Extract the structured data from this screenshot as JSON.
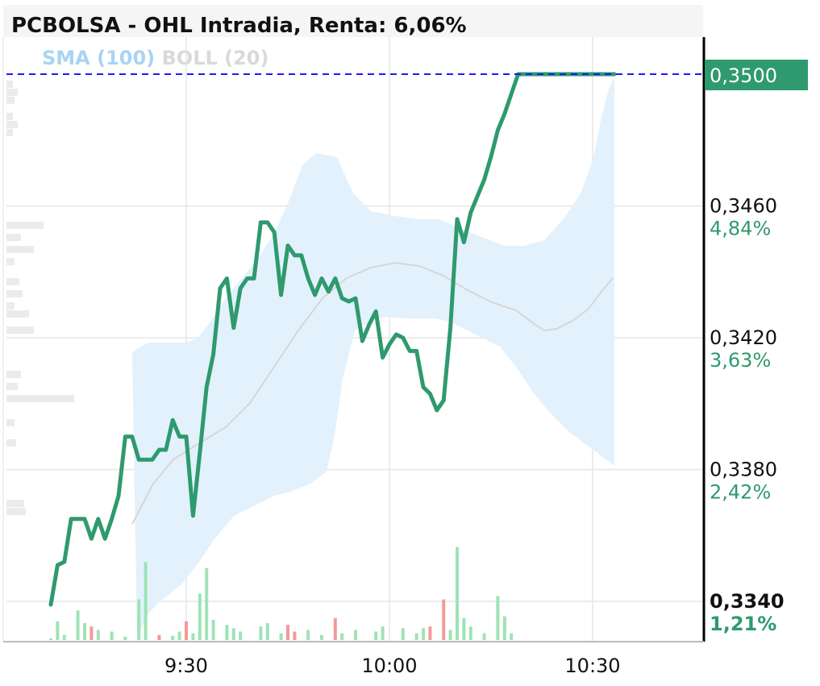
{
  "header": {
    "title": "PCBOLSA - OHL Intradia, Renta: 6,06%"
  },
  "legend": {
    "items": [
      {
        "label": "SMA (100)",
        "color": "#a8d4f5"
      },
      {
        "label": "BOLL (20)",
        "color": "#d9d9d9"
      }
    ]
  },
  "colors": {
    "price_line": "#2e9a6e",
    "band_fill": "#e3f1fc",
    "sma_line": "#d6d6d6",
    "volume_up": "#9ee3b5",
    "volume_down": "#f29a9a",
    "current_price_line": "#1a1aff",
    "current_price_tag": "#2e9a6e",
    "percent_text": "#2e9a6e",
    "grid": "#e6e6e6"
  },
  "chart_data": {
    "type": "line",
    "x_ticks": [
      "9:30",
      "10:00",
      "10:30"
    ],
    "y_ticks": [
      {
        "value": 0.334,
        "label": "0,3340",
        "pct": "1,21%"
      },
      {
        "value": 0.338,
        "label": "0,3380",
        "pct": "2,42%"
      },
      {
        "value": 0.342,
        "label": "0,3420",
        "pct": "3,63%"
      },
      {
        "value": 0.346,
        "label": "0,3460",
        "pct": "4,84%"
      }
    ],
    "ylim": [
      0.3329,
      0.3516
    ],
    "current_price": {
      "value": 0.35,
      "label": "0,3500"
    },
    "time_range": [
      "9:10",
      "10:34"
    ],
    "series": [
      {
        "type": "line",
        "points": [
          [
            "9:10",
            0.3339
          ],
          [
            "9:11",
            0.3351
          ],
          [
            "9:12",
            0.3352
          ],
          [
            "9:13",
            0.3365
          ],
          [
            "9:15",
            0.3365
          ],
          [
            "9:16",
            0.3359
          ],
          [
            "9:17",
            0.3365
          ],
          [
            "9:18",
            0.3359
          ],
          [
            "9:19",
            0.3365
          ],
          [
            "9:20",
            0.3372
          ],
          [
            "9:21",
            0.339
          ],
          [
            "9:22",
            0.339
          ],
          [
            "9:23",
            0.3383
          ],
          [
            "9:25",
            0.3383
          ],
          [
            "9:26",
            0.3386
          ],
          [
            "9:27",
            0.3386
          ],
          [
            "9:28",
            0.3395
          ],
          [
            "9:29",
            0.339
          ],
          [
            "9:30",
            0.339
          ],
          [
            "9:31",
            0.3366
          ],
          [
            "9:32",
            0.3385
          ],
          [
            "9:33",
            0.3405
          ],
          [
            "9:34",
            0.3415
          ],
          [
            "9:35",
            0.3435
          ],
          [
            "9:36",
            0.3438
          ],
          [
            "9:37",
            0.3423
          ],
          [
            "9:38",
            0.3435
          ],
          [
            "9:39",
            0.3438
          ],
          [
            "9:40",
            0.3438
          ],
          [
            "9:41",
            0.3455
          ],
          [
            "9:42",
            0.3455
          ],
          [
            "9:43",
            0.3452
          ],
          [
            "9:44",
            0.3433
          ],
          [
            "9:45",
            0.3448
          ],
          [
            "9:46",
            0.3445
          ],
          [
            "9:47",
            0.3445
          ],
          [
            "9:48",
            0.3438
          ],
          [
            "9:49",
            0.3433
          ],
          [
            "9:50",
            0.3438
          ],
          [
            "9:51",
            0.3434
          ],
          [
            "9:52",
            0.3438
          ],
          [
            "9:53",
            0.3432
          ],
          [
            "9:54",
            0.3431
          ],
          [
            "9:55",
            0.3432
          ],
          [
            "9:56",
            0.3419
          ],
          [
            "9:57",
            0.3424
          ],
          [
            "9:58",
            0.3428
          ],
          [
            "9:59",
            0.3414
          ],
          [
            "10:00",
            0.3418
          ],
          [
            "10:01",
            0.3421
          ],
          [
            "10:02",
            0.342
          ],
          [
            "10:03",
            0.3416
          ],
          [
            "10:04",
            0.3416
          ],
          [
            "10:05",
            0.3405
          ],
          [
            "10:06",
            0.3403
          ],
          [
            "10:07",
            0.3398
          ],
          [
            "10:08",
            0.3401
          ],
          [
            "10:09",
            0.3423
          ],
          [
            "10:10",
            0.3456
          ],
          [
            "10:11",
            0.3449
          ],
          [
            "10:12",
            0.3458
          ],
          [
            "10:13",
            0.3463
          ],
          [
            "10:14",
            0.3468
          ],
          [
            "10:15",
            0.3475
          ],
          [
            "10:16",
            0.3483
          ],
          [
            "10:17",
            0.3488
          ],
          [
            "10:18",
            0.3494
          ],
          [
            "10:19",
            0.35
          ],
          [
            "10:20",
            0.35
          ],
          [
            "10:30",
            0.35
          ],
          [
            "10:34",
            0.35
          ]
        ]
      },
      {
        "type": "volume",
        "bars": [
          {
            "x": "9:10",
            "v": 2,
            "dir": "up"
          },
          {
            "x": "9:11",
            "v": 22,
            "dir": "up"
          },
          {
            "x": "9:12",
            "v": 6,
            "dir": "up"
          },
          {
            "x": "9:14",
            "v": 35,
            "dir": "up"
          },
          {
            "x": "9:15",
            "v": 20,
            "dir": "up"
          },
          {
            "x": "9:16",
            "v": 16,
            "dir": "down"
          },
          {
            "x": "9:17",
            "v": 12,
            "dir": "up"
          },
          {
            "x": "9:19",
            "v": 10,
            "dir": "up"
          },
          {
            "x": "9:21",
            "v": 4,
            "dir": "up"
          },
          {
            "x": "9:23",
            "v": 48,
            "dir": "up"
          },
          {
            "x": "9:24",
            "v": 92,
            "dir": "up"
          },
          {
            "x": "9:26",
            "v": 6,
            "dir": "down"
          },
          {
            "x": "9:28",
            "v": 5,
            "dir": "up"
          },
          {
            "x": "9:29",
            "v": 10,
            "dir": "up"
          },
          {
            "x": "9:30",
            "v": 22,
            "dir": "down"
          },
          {
            "x": "9:31",
            "v": 8,
            "dir": "up"
          },
          {
            "x": "9:32",
            "v": 55,
            "dir": "up"
          },
          {
            "x": "9:33",
            "v": 85,
            "dir": "up"
          },
          {
            "x": "9:34",
            "v": 24,
            "dir": "up"
          },
          {
            "x": "9:36",
            "v": 18,
            "dir": "up"
          },
          {
            "x": "9:37",
            "v": 14,
            "dir": "up"
          },
          {
            "x": "9:38",
            "v": 10,
            "dir": "up"
          },
          {
            "x": "9:41",
            "v": 16,
            "dir": "up"
          },
          {
            "x": "9:42",
            "v": 20,
            "dir": "up"
          },
          {
            "x": "9:44",
            "v": 8,
            "dir": "up"
          },
          {
            "x": "9:45",
            "v": 18,
            "dir": "down"
          },
          {
            "x": "9:46",
            "v": 10,
            "dir": "down"
          },
          {
            "x": "9:48",
            "v": 12,
            "dir": "up"
          },
          {
            "x": "9:50",
            "v": 6,
            "dir": "up"
          },
          {
            "x": "9:52",
            "v": 26,
            "dir": "down"
          },
          {
            "x": "9:53",
            "v": 8,
            "dir": "up"
          },
          {
            "x": "9:55",
            "v": 12,
            "dir": "up"
          },
          {
            "x": "9:58",
            "v": 10,
            "dir": "up"
          },
          {
            "x": "9:59",
            "v": 16,
            "dir": "up"
          },
          {
            "x": "10:02",
            "v": 14,
            "dir": "up"
          },
          {
            "x": "10:04",
            "v": 8,
            "dir": "up"
          },
          {
            "x": "10:05",
            "v": 14,
            "dir": "up"
          },
          {
            "x": "10:06",
            "v": 16,
            "dir": "down"
          },
          {
            "x": "10:08",
            "v": 48,
            "dir": "down"
          },
          {
            "x": "10:09",
            "v": 12,
            "dir": "up"
          },
          {
            "x": "10:10",
            "v": 110,
            "dir": "up"
          },
          {
            "x": "10:11",
            "v": 26,
            "dir": "up"
          },
          {
            "x": "10:12",
            "v": 16,
            "dir": "up"
          },
          {
            "x": "10:14",
            "v": 8,
            "dir": "up"
          },
          {
            "x": "10:16",
            "v": 52,
            "dir": "up"
          },
          {
            "x": "10:17",
            "v": 28,
            "dir": "up"
          },
          {
            "x": "10:18",
            "v": 8,
            "dir": "up"
          }
        ]
      }
    ]
  }
}
